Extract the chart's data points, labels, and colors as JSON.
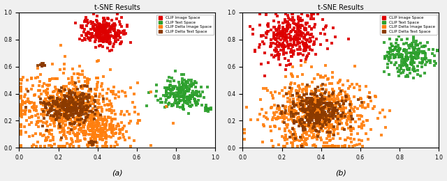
{
  "title": "t-SNE Results",
  "legend_labels": [
    "CLIP Image Space",
    "CLIP Text Space",
    "CLIP Delta Image Space",
    "CLIP Delta Text Space"
  ],
  "colors": [
    "#dd0000",
    "#2ca02c",
    "#ff7f0e",
    "#8b3a00"
  ],
  "marker_size": 6,
  "alpha": 0.9,
  "subplot_labels": [
    "(a)",
    "(b)"
  ],
  "xlim": [
    0.0,
    1.0
  ],
  "ylim": [
    0.0,
    1.0
  ],
  "xticks": [
    0.0,
    0.2,
    0.4,
    0.6,
    0.8,
    1.0
  ],
  "yticks": [
    0.0,
    0.2,
    0.4,
    0.6,
    0.8,
    1.0
  ]
}
